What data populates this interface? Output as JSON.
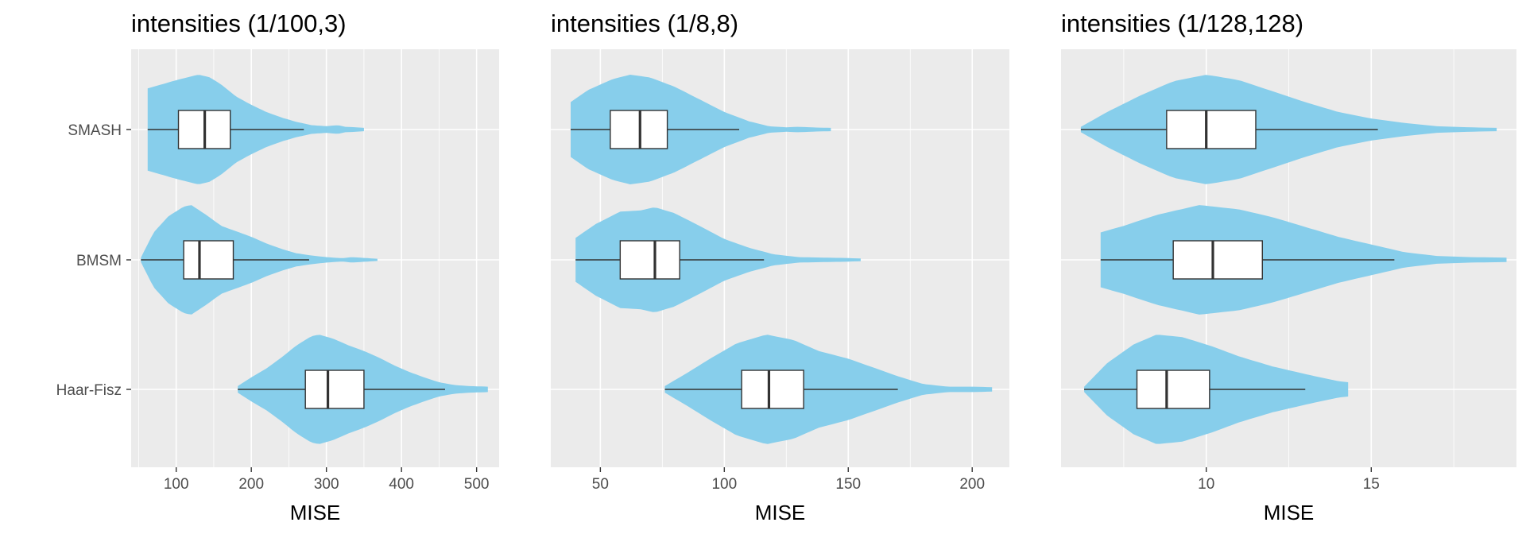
{
  "colors": {
    "panel_bg": "#ebebeb",
    "grid": "#ffffff",
    "violin_fill": "#87ceeb",
    "box_fill": "#ffffff",
    "box_line": "#333333"
  },
  "chart_data": [
    {
      "type": "violin",
      "title": "intensities (1/100,3)",
      "xlabel": "MISE",
      "xlim": [
        40,
        530
      ],
      "xticks": [
        100,
        200,
        300,
        400,
        500
      ],
      "grid": true,
      "categories": [
        "SMASH",
        "BMSM",
        "Haar-Fisz"
      ],
      "series": [
        {
          "name": "SMASH",
          "min": 62,
          "max": 350,
          "q1": 103,
          "median": 138,
          "q3": 172,
          "whisker_low": 62,
          "whisker_high": 270,
          "density": [
            [
              62,
              0.75
            ],
            [
              80,
              0.82
            ],
            [
              100,
              0.9
            ],
            [
              120,
              0.97
            ],
            [
              130,
              1.0
            ],
            [
              145,
              0.95
            ],
            [
              160,
              0.82
            ],
            [
              180,
              0.6
            ],
            [
              200,
              0.45
            ],
            [
              220,
              0.32
            ],
            [
              240,
              0.22
            ],
            [
              260,
              0.14
            ],
            [
              280,
              0.08
            ],
            [
              300,
              0.06
            ],
            [
              315,
              0.08
            ],
            [
              325,
              0.05
            ],
            [
              340,
              0.04
            ],
            [
              350,
              0.03
            ]
          ]
        },
        {
          "name": "BMSM",
          "min": 53,
          "max": 368,
          "q1": 110,
          "median": 131,
          "q3": 176,
          "whisker_low": 53,
          "whisker_high": 277,
          "density": [
            [
              53,
              0.04
            ],
            [
              70,
              0.5
            ],
            [
              90,
              0.8
            ],
            [
              110,
              0.97
            ],
            [
              120,
              1.0
            ],
            [
              140,
              0.82
            ],
            [
              160,
              0.62
            ],
            [
              180,
              0.52
            ],
            [
              200,
              0.42
            ],
            [
              220,
              0.3
            ],
            [
              240,
              0.2
            ],
            [
              260,
              0.12
            ],
            [
              280,
              0.08
            ],
            [
              300,
              0.05
            ],
            [
              320,
              0.03
            ],
            [
              335,
              0.05
            ],
            [
              350,
              0.035
            ],
            [
              368,
              0.02
            ]
          ]
        },
        {
          "name": "Haar-Fisz",
          "min": 182,
          "max": 515,
          "q1": 272,
          "median": 302,
          "q3": 350,
          "whisker_low": 182,
          "whisker_high": 458,
          "density": [
            [
              182,
              0.06
            ],
            [
              200,
              0.22
            ],
            [
              220,
              0.38
            ],
            [
              240,
              0.58
            ],
            [
              260,
              0.8
            ],
            [
              280,
              0.97
            ],
            [
              290,
              1.0
            ],
            [
              310,
              0.92
            ],
            [
              330,
              0.8
            ],
            [
              350,
              0.7
            ],
            [
              370,
              0.58
            ],
            [
              390,
              0.44
            ],
            [
              410,
              0.32
            ],
            [
              430,
              0.22
            ],
            [
              450,
              0.13
            ],
            [
              470,
              0.08
            ],
            [
              490,
              0.06
            ],
            [
              515,
              0.05
            ]
          ]
        }
      ]
    },
    {
      "type": "violin",
      "title": "intensities (1/8,8)",
      "xlabel": "MISE",
      "xlim": [
        30,
        215
      ],
      "xticks": [
        50,
        100,
        150,
        200
      ],
      "grid": true,
      "categories": [
        "SMASH",
        "BMSM",
        "Haar-Fisz"
      ],
      "series": [
        {
          "name": "SMASH",
          "min": 38,
          "max": 143,
          "q1": 54,
          "median": 66,
          "q3": 77,
          "whisker_low": 38,
          "whisker_high": 106,
          "density": [
            [
              38,
              0.5
            ],
            [
              45,
              0.72
            ],
            [
              55,
              0.92
            ],
            [
              62,
              1.0
            ],
            [
              70,
              0.95
            ],
            [
              80,
              0.78
            ],
            [
              90,
              0.55
            ],
            [
              100,
              0.32
            ],
            [
              110,
              0.15
            ],
            [
              118,
              0.06
            ],
            [
              125,
              0.04
            ],
            [
              130,
              0.05
            ],
            [
              138,
              0.035
            ],
            [
              143,
              0.03
            ]
          ]
        },
        {
          "name": "BMSM",
          "min": 40,
          "max": 155,
          "q1": 58,
          "median": 72,
          "q3": 82,
          "whisker_low": 40,
          "whisker_high": 116,
          "density": [
            [
              40,
              0.4
            ],
            [
              48,
              0.65
            ],
            [
              58,
              0.88
            ],
            [
              66,
              0.9
            ],
            [
              72,
              0.96
            ],
            [
              80,
              0.85
            ],
            [
              90,
              0.62
            ],
            [
              100,
              0.38
            ],
            [
              110,
              0.22
            ],
            [
              120,
              0.1
            ],
            [
              130,
              0.05
            ],
            [
              140,
              0.04
            ],
            [
              148,
              0.035
            ],
            [
              155,
              0.025
            ]
          ]
        },
        {
          "name": "Haar-Fisz",
          "min": 76,
          "max": 208,
          "q1": 107,
          "median": 118,
          "q3": 132,
          "whisker_low": 76,
          "whisker_high": 170,
          "density": [
            [
              76,
              0.06
            ],
            [
              85,
              0.3
            ],
            [
              95,
              0.58
            ],
            [
              105,
              0.84
            ],
            [
              117,
              1.0
            ],
            [
              128,
              0.9
            ],
            [
              138,
              0.7
            ],
            [
              150,
              0.56
            ],
            [
              160,
              0.4
            ],
            [
              170,
              0.24
            ],
            [
              180,
              0.1
            ],
            [
              190,
              0.05
            ],
            [
              200,
              0.05
            ],
            [
              208,
              0.04
            ]
          ]
        }
      ]
    },
    {
      "type": "violin",
      "title": "intensities (1/128,128)",
      "xlabel": "MISE",
      "xlim": [
        5.6,
        19.4
      ],
      "xticks": [
        10,
        15
      ],
      "grid": true,
      "categories": [
        "SMASH",
        "BMSM",
        "Haar-Fisz"
      ],
      "series": [
        {
          "name": "SMASH",
          "min": 6.2,
          "max": 18.8,
          "q1": 8.8,
          "median": 10.0,
          "q3": 11.5,
          "whisker_low": 6.2,
          "whisker_high": 15.2,
          "density": [
            [
              6.2,
              0.05
            ],
            [
              7,
              0.32
            ],
            [
              8,
              0.62
            ],
            [
              9,
              0.88
            ],
            [
              10,
              1.0
            ],
            [
              11,
              0.9
            ],
            [
              12,
              0.7
            ],
            [
              13,
              0.5
            ],
            [
              14,
              0.32
            ],
            [
              15,
              0.2
            ],
            [
              16,
              0.12
            ],
            [
              17,
              0.06
            ],
            [
              18,
              0.04
            ],
            [
              18.8,
              0.03
            ]
          ]
        },
        {
          "name": "BMSM",
          "min": 6.8,
          "max": 19.1,
          "q1": 9.0,
          "median": 10.2,
          "q3": 11.7,
          "whisker_low": 6.8,
          "whisker_high": 15.7,
          "density": [
            [
              6.8,
              0.5
            ],
            [
              7.5,
              0.62
            ],
            [
              8.5,
              0.82
            ],
            [
              9.8,
              1.0
            ],
            [
              11,
              0.92
            ],
            [
              12,
              0.78
            ],
            [
              13,
              0.6
            ],
            [
              14,
              0.42
            ],
            [
              15,
              0.28
            ],
            [
              16,
              0.14
            ],
            [
              17,
              0.07
            ],
            [
              18,
              0.05
            ],
            [
              19.1,
              0.04
            ]
          ]
        },
        {
          "name": "Haar-Fisz",
          "min": 6.3,
          "max": 14.3,
          "q1": 7.9,
          "median": 8.8,
          "q3": 10.1,
          "whisker_low": 6.3,
          "whisker_high": 13.0,
          "density": [
            [
              6.3,
              0.05
            ],
            [
              7,
              0.48
            ],
            [
              7.8,
              0.82
            ],
            [
              8.5,
              1.0
            ],
            [
              9.3,
              0.95
            ],
            [
              10.2,
              0.78
            ],
            [
              11,
              0.6
            ],
            [
              12,
              0.42
            ],
            [
              13,
              0.28
            ],
            [
              13.6,
              0.2
            ],
            [
              14.0,
              0.15
            ],
            [
              14.3,
              0.13
            ]
          ]
        }
      ]
    }
  ]
}
